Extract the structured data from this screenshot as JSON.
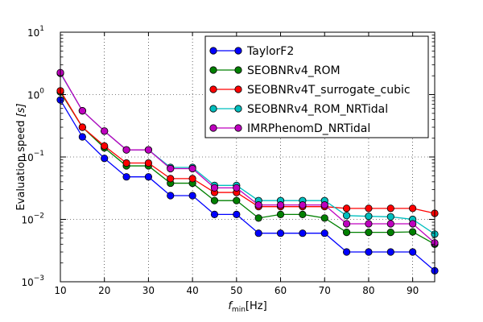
{
  "chart_data": {
    "type": "line",
    "title": "",
    "xlabel": "f_min[Hz]",
    "xlabel_main": "f",
    "xlabel_sub": "min",
    "xlabel_unit": "[Hz]",
    "ylabel": "Evaluation speed [s]",
    "ylabel_main": "Evaluation speed ",
    "ylabel_unit": "[s]",
    "xlim": [
      10,
      95
    ],
    "ylim": [
      0.001,
      10
    ],
    "yscale": "log",
    "grid": true,
    "legend_position": "top-right",
    "x_ticks": [
      10,
      20,
      30,
      40,
      50,
      60,
      70,
      80,
      90
    ],
    "y_ticks": [
      {
        "value": 0.001,
        "base": "10",
        "exp": "−3"
      },
      {
        "value": 0.01,
        "base": "10",
        "exp": "−2"
      },
      {
        "value": 0.1,
        "base": "10",
        "exp": "−1"
      },
      {
        "value": 1,
        "base": "10",
        "exp": "0"
      },
      {
        "value": 10,
        "base": "10",
        "exp": "1"
      }
    ],
    "x": [
      10,
      15,
      20,
      25,
      30,
      35,
      40,
      45,
      50,
      55,
      60,
      65,
      70,
      75,
      80,
      85,
      90,
      95
    ],
    "series": [
      {
        "name": "TaylorF2",
        "color": "#0000ff",
        "values": [
          0.82,
          0.21,
          0.095,
          0.048,
          0.048,
          0.024,
          0.024,
          0.012,
          0.012,
          0.006,
          0.006,
          0.006,
          0.006,
          0.003,
          0.003,
          0.003,
          0.003,
          0.0015
        ]
      },
      {
        "name": "SEOBNRv4_ROM",
        "color": "#008000",
        "values": [
          1.1,
          0.3,
          0.14,
          0.072,
          0.072,
          0.038,
          0.038,
          0.02,
          0.02,
          0.0105,
          0.012,
          0.012,
          0.0105,
          0.0062,
          0.0062,
          0.0062,
          0.0063,
          0.004
        ]
      },
      {
        "name": "SEOBNRv4T_surrogate_cubic",
        "color": "#ff0000",
        "values": [
          1.15,
          0.3,
          0.15,
          0.08,
          0.08,
          0.045,
          0.045,
          0.027,
          0.027,
          0.016,
          0.016,
          0.016,
          0.016,
          0.015,
          0.015,
          0.015,
          0.015,
          0.0125
        ]
      },
      {
        "name": "SEOBNRv4_ROM_NRTidal",
        "color": "#00bfbf",
        "values": [
          2.2,
          0.55,
          0.26,
          0.13,
          0.13,
          0.068,
          0.068,
          0.035,
          0.035,
          0.02,
          0.02,
          0.02,
          0.02,
          0.0115,
          0.0112,
          0.011,
          0.01,
          0.0058
        ]
      },
      {
        "name": "IMRPhenomD_NRTidal",
        "color": "#bf00bf",
        "values": [
          2.25,
          0.55,
          0.26,
          0.13,
          0.13,
          0.065,
          0.065,
          0.032,
          0.032,
          0.017,
          0.017,
          0.017,
          0.017,
          0.0085,
          0.0085,
          0.0085,
          0.0085,
          0.0042
        ]
      }
    ]
  }
}
